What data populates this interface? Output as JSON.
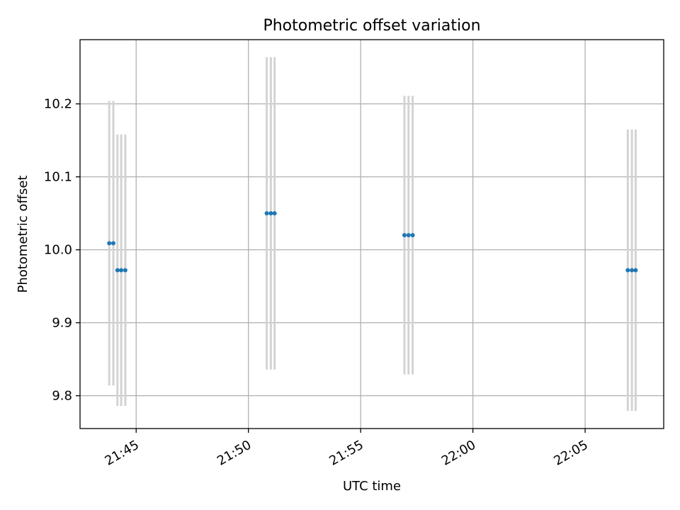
{
  "chart_data": {
    "type": "scatter",
    "title": "Photometric offset variation",
    "xlabel": "UTC time",
    "ylabel": "Photometric offset",
    "x_axis_type": "time",
    "xlim": [
      "21:42:30",
      "22:08:30"
    ],
    "ylim": [
      9.755,
      10.288
    ],
    "x_ticks": [
      "21:45",
      "21:50",
      "21:55",
      "22:00",
      "22:05"
    ],
    "y_ticks": [
      9.8,
      9.9,
      10.0,
      10.1,
      10.2
    ],
    "y_tick_labels": [
      "9.8",
      "9.9",
      "10.0",
      "10.1",
      "10.2"
    ],
    "grid": true,
    "legend": "none",
    "colors": {
      "points": "#1f77b4",
      "errorbars": "#d3d3d3",
      "grid": "#b0b0b0"
    },
    "series": [
      {
        "points": [
          {
            "x": "21:43:48",
            "y": 10.009,
            "yerr": 0.195
          },
          {
            "x": "21:43:59",
            "y": 10.009,
            "yerr": 0.195
          },
          {
            "x": "21:44:10",
            "y": 9.972,
            "yerr": 0.186
          },
          {
            "x": "21:44:20",
            "y": 9.972,
            "yerr": 0.186
          },
          {
            "x": "21:44:31",
            "y": 9.972,
            "yerr": 0.186
          },
          {
            "x": "21:50:49",
            "y": 10.05,
            "yerr": 0.214
          },
          {
            "x": "21:51:00",
            "y": 10.05,
            "yerr": 0.214
          },
          {
            "x": "21:51:10",
            "y": 10.05,
            "yerr": 0.214
          },
          {
            "x": "21:56:57",
            "y": 10.02,
            "yerr": 0.191
          },
          {
            "x": "21:57:08",
            "y": 10.02,
            "yerr": 0.191
          },
          {
            "x": "21:57:19",
            "y": 10.02,
            "yerr": 0.191
          },
          {
            "x": "22:06:54",
            "y": 9.972,
            "yerr": 0.193
          },
          {
            "x": "22:07:05",
            "y": 9.972,
            "yerr": 0.193
          },
          {
            "x": "22:07:15",
            "y": 9.972,
            "yerr": 0.193
          }
        ]
      }
    ]
  }
}
